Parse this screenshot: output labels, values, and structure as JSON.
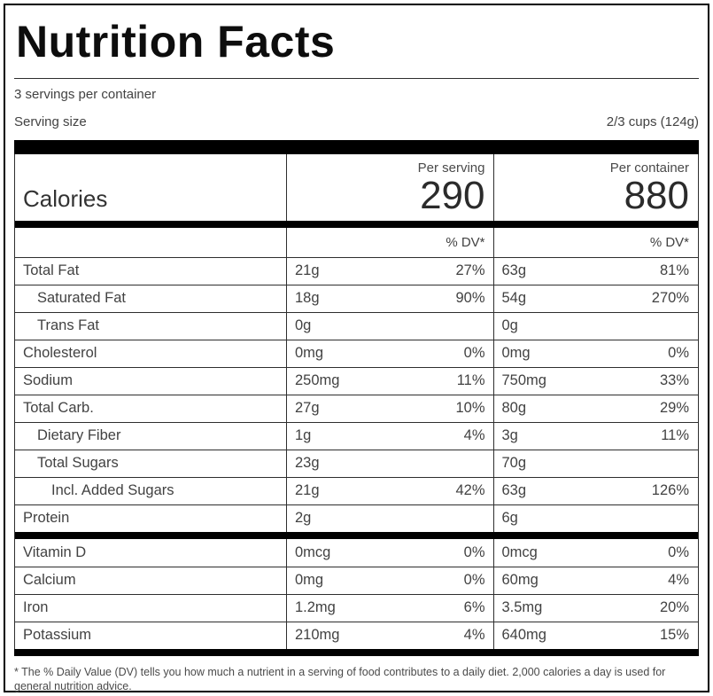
{
  "title": "Nutrition Facts",
  "servings_per_container": "3 servings per container",
  "serving_size_label": "Serving size",
  "serving_size_value": "2/3 cups (124g)",
  "calories": {
    "label": "Calories",
    "per_serving_label": "Per serving",
    "per_serving_value": "290",
    "per_container_label": "Per container",
    "per_container_value": "880"
  },
  "dv_header": "% DV*",
  "nutrients": [
    {
      "name": "Total Fat",
      "serving_amount": "21g",
      "serving_dv": "27%",
      "container_amount": "63g",
      "container_dv": "81%"
    },
    {
      "name": "Saturated Fat",
      "serving_amount": "18g",
      "serving_dv": "90%",
      "container_amount": "54g",
      "container_dv": "270%"
    },
    {
      "name": "Trans Fat",
      "serving_amount": "0g",
      "serving_dv": "",
      "container_amount": "0g",
      "container_dv": ""
    },
    {
      "name": "Cholesterol",
      "serving_amount": "0mg",
      "serving_dv": "0%",
      "container_amount": "0mg",
      "container_dv": "0%"
    },
    {
      "name": "Sodium",
      "serving_amount": "250mg",
      "serving_dv": "11%",
      "container_amount": "750mg",
      "container_dv": "33%"
    },
    {
      "name": "Total Carb.",
      "serving_amount": "27g",
      "serving_dv": "10%",
      "container_amount": "80g",
      "container_dv": "29%"
    },
    {
      "name": "Dietary Fiber",
      "serving_amount": "1g",
      "serving_dv": "4%",
      "container_amount": "3g",
      "container_dv": "11%"
    },
    {
      "name": "Total Sugars",
      "serving_amount": "23g",
      "serving_dv": "",
      "container_amount": "70g",
      "container_dv": ""
    },
    {
      "name": "Incl. Added Sugars",
      "serving_amount": "21g",
      "serving_dv": "42%",
      "container_amount": "63g",
      "container_dv": "126%"
    },
    {
      "name": "Protein",
      "serving_amount": "2g",
      "serving_dv": "",
      "container_amount": "6g",
      "container_dv": ""
    }
  ],
  "vitamins": [
    {
      "name": "Vitamin D",
      "serving_amount": "0mcg",
      "serving_dv": "0%",
      "container_amount": "0mcg",
      "container_dv": "0%"
    },
    {
      "name": "Calcium",
      "serving_amount": "0mg",
      "serving_dv": "0%",
      "container_amount": "60mg",
      "container_dv": "4%"
    },
    {
      "name": "Iron",
      "serving_amount": "1.2mg",
      "serving_dv": "6%",
      "container_amount": "3.5mg",
      "container_dv": "20%"
    },
    {
      "name": "Potassium",
      "serving_amount": "210mg",
      "serving_dv": "4%",
      "container_amount": "640mg",
      "container_dv": "15%"
    }
  ],
  "footnote": "* The % Daily Value (DV) tells you how much a nutrient in a serving of food contributes to a daily diet. 2,000 calories a day is used for general nutrition advice.",
  "colors": {
    "border": "#000000",
    "rule": "#2e2e2e",
    "text": "#424242",
    "title": "#0d0d0d"
  }
}
